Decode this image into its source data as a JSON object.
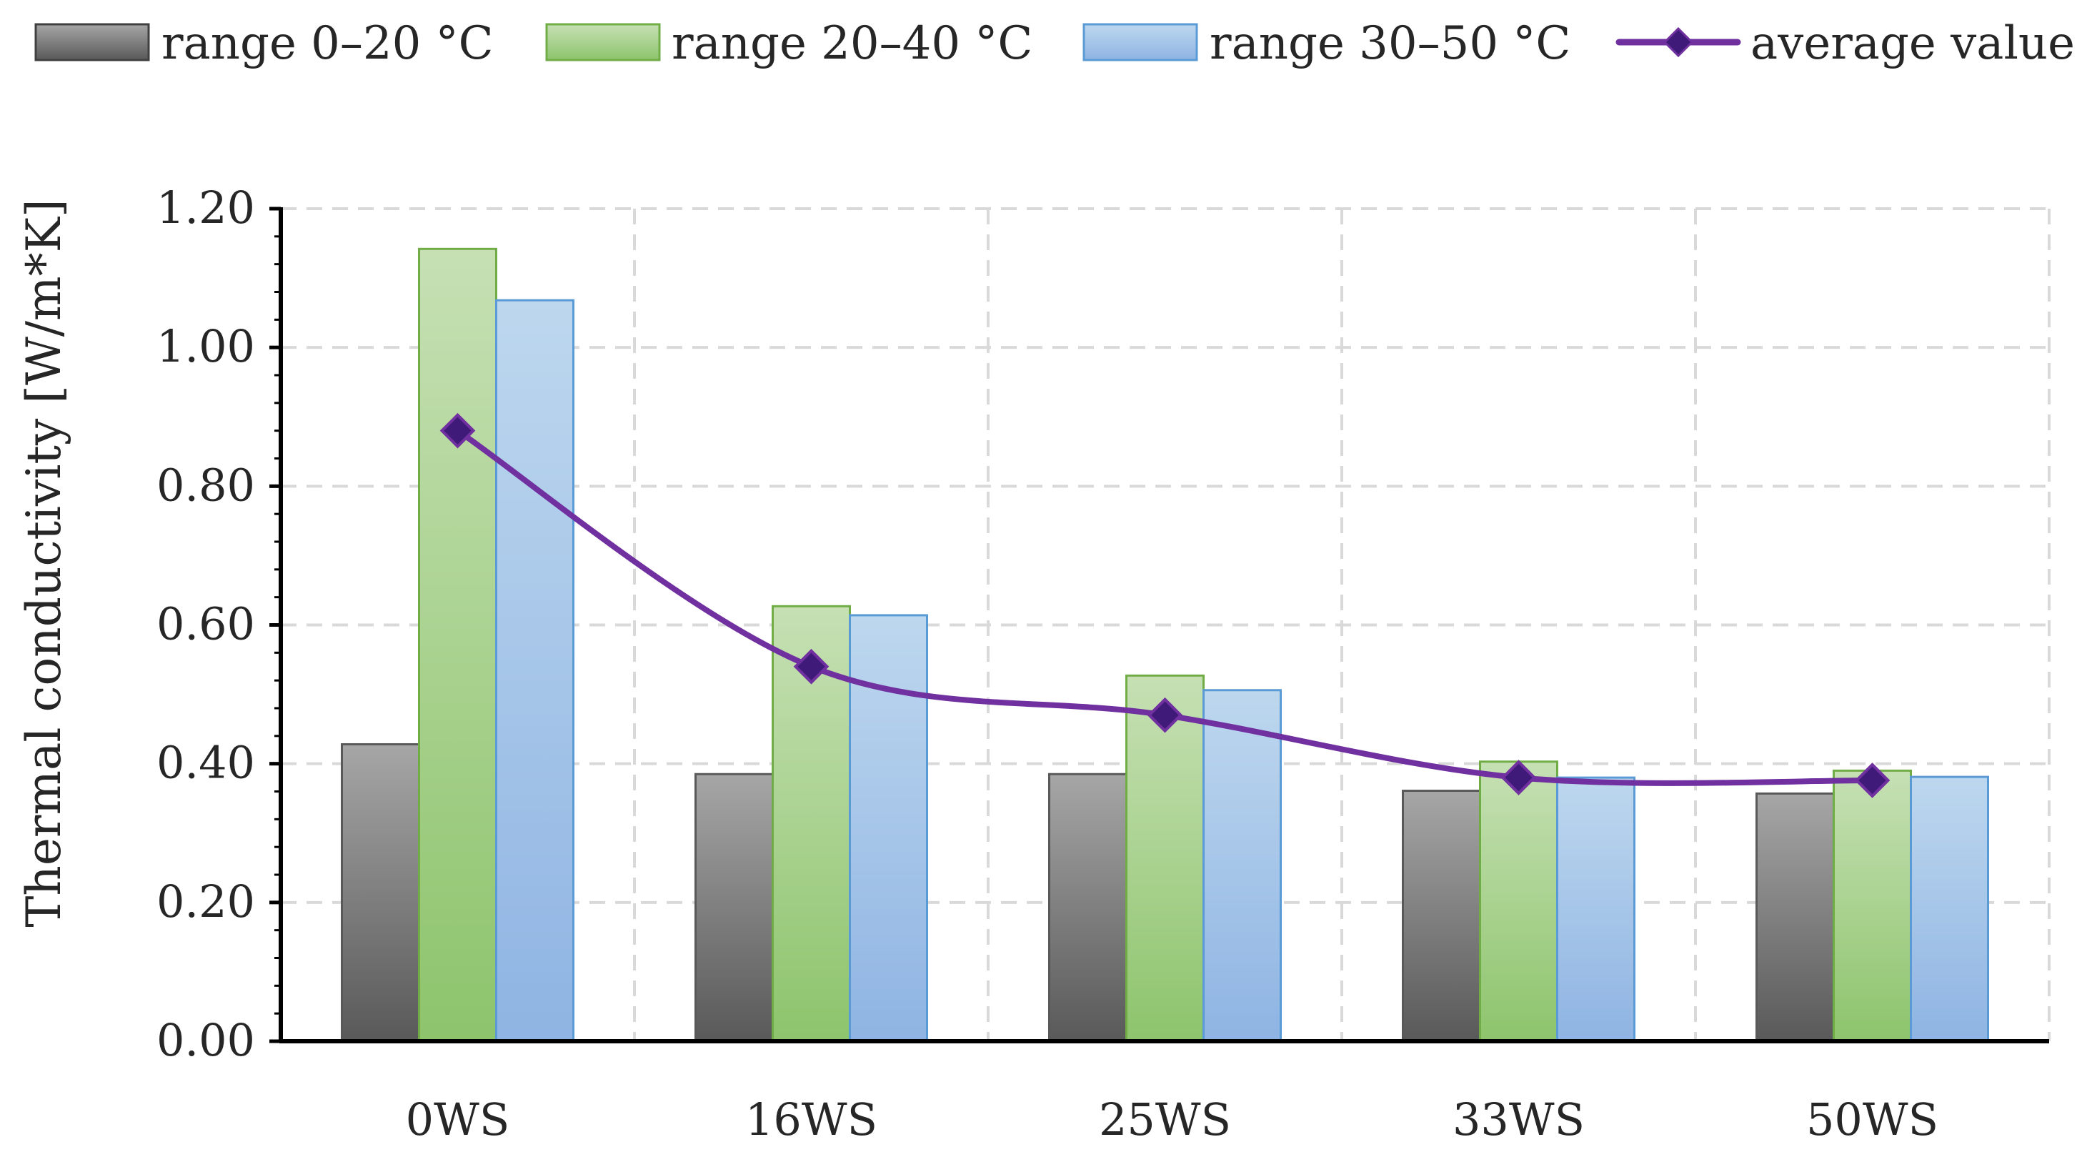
{
  "chart_data": {
    "type": "bar",
    "title": "",
    "xlabel": "",
    "ylabel": "Thermal conductivity [W/m*K]",
    "ylim": [
      0,
      1.2
    ],
    "yticks": [
      "0.00",
      "0.20",
      "0.40",
      "0.60",
      "0.80",
      "1.00",
      "1.20"
    ],
    "categories": [
      "0WS",
      "16WS",
      "25WS",
      "33WS",
      "50WS"
    ],
    "grid": true,
    "legend_position": "top",
    "series": [
      {
        "name": "range 0–20 °C",
        "kind": "bar",
        "color": "#7f7f7f",
        "values": [
          0.428,
          0.385,
          0.385,
          0.361,
          0.357
        ]
      },
      {
        "name": "range 20–40 °C",
        "kind": "bar",
        "color": "#a9d18e",
        "values": [
          1.142,
          0.627,
          0.527,
          0.403,
          0.39
        ]
      },
      {
        "name": "range 30–50 °C",
        "kind": "bar",
        "color": "#9dc3e6",
        "values": [
          1.068,
          0.614,
          0.506,
          0.38,
          0.381
        ]
      },
      {
        "name": "average value",
        "kind": "line",
        "color": "#7030a0",
        "marker_color": "#3f1a78",
        "values": [
          0.88,
          0.54,
          0.47,
          0.38,
          0.376
        ]
      }
    ]
  }
}
